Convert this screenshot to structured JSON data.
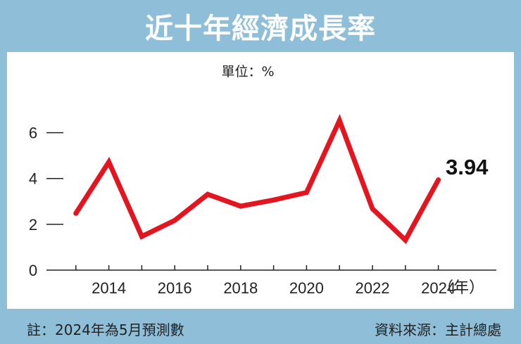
{
  "title": "近十年經濟成長率",
  "unit_label": "單位：%",
  "year_suffix": "（年）",
  "callout_label": "3.94",
  "note": "註：2024年為5月預測數",
  "source": "資料來源：主計總處",
  "colors": {
    "line": "#e3151f",
    "header": "#8fbfd8",
    "axis": "#222222"
  },
  "chart_data": {
    "type": "line",
    "title": "近十年經濟成長率",
    "ylabel": "單位：%",
    "xlabel": "",
    "x": [
      2013,
      2014,
      2015,
      2016,
      2017,
      2018,
      2019,
      2020,
      2021,
      2022,
      2023,
      2024
    ],
    "series": [
      {
        "values": [
          2.48,
          4.72,
          1.47,
          2.17,
          3.31,
          2.79,
          3.06,
          3.39,
          6.53,
          2.68,
          1.31,
          3.94
        ]
      }
    ],
    "xticks": [
      "2014",
      "2016",
      "2018",
      "2020",
      "2022",
      "2024"
    ],
    "yticks": [
      "0",
      "2",
      "4",
      "6"
    ],
    "ylim": [
      0,
      7
    ],
    "grid": false,
    "annotations": [
      {
        "x": 2024,
        "text": "3.94"
      }
    ]
  }
}
